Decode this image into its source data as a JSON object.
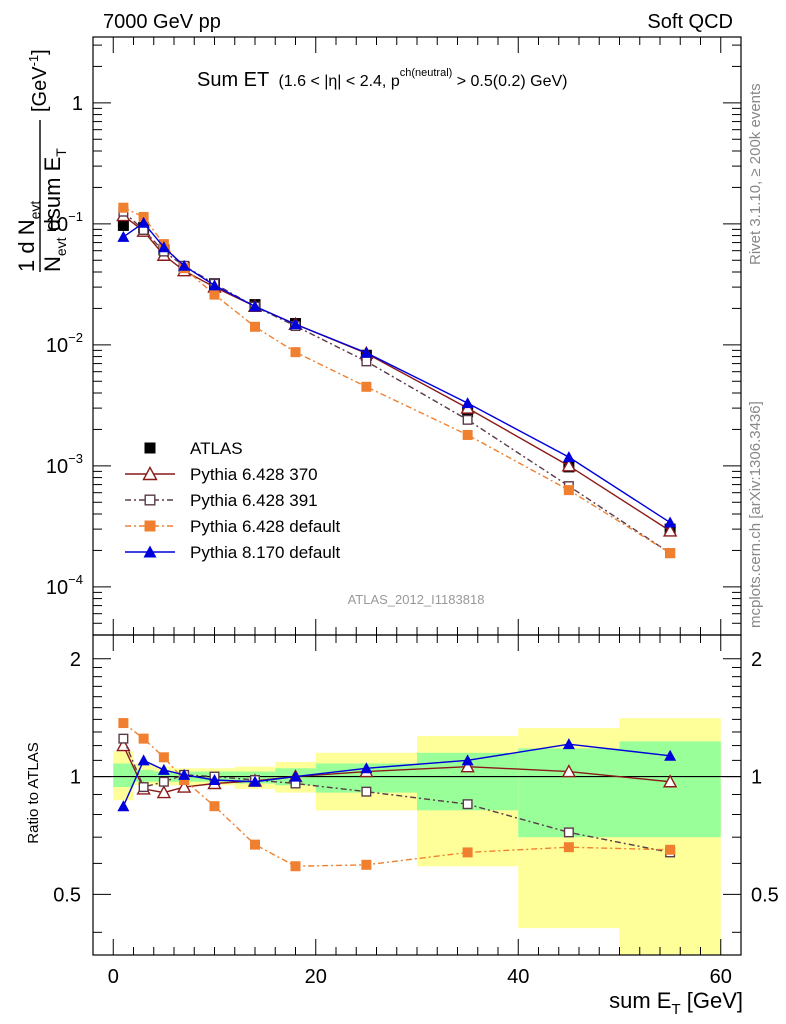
{
  "header": {
    "left": "7000 GeV pp",
    "right": "Soft QCD"
  },
  "side_labels": {
    "rivet": "Rivet 3.1.10, ≥ 200k events",
    "mcplots": "mcplots.cern.ch [arXiv:1306.3436]"
  },
  "chart_data": [
    {
      "type": "line",
      "panel": "main",
      "title": "Sum ET",
      "title_detail": "(1.6 < |η| < 2.4, p",
      "title_detail_sup": "ch(neutral)",
      "title_detail_end": " > 0.5(0.2) GeV)",
      "ylabel_numer": "1     d N",
      "ylabel_numer_sub": "evt",
      "ylabel_denom": "N",
      "ylabel_denom_sub": "evt",
      "ylabel_denom_2": " dsum E",
      "ylabel_denom_2_sub": "T",
      "ylabel_unit": "[GeV",
      "ylabel_unit_sup": "-1",
      "ylabel_unit_end": "]",
      "yscale": "log",
      "xlim": [
        -2,
        62
      ],
      "ylim": [
        4e-05,
        3.5
      ],
      "ytick_labels": [
        {
          "value": 1,
          "mant": "1",
          "exp": ""
        },
        {
          "value": 0.1,
          "mant": "10",
          "exp": "−1"
        },
        {
          "value": 0.01,
          "mant": "10",
          "exp": "−2"
        },
        {
          "value": 0.001,
          "mant": "10",
          "exp": "−3"
        },
        {
          "value": 0.0001,
          "mant": "10",
          "exp": "−4"
        }
      ],
      "watermark": "ATLAS_2012_I1183818",
      "legend_position": "bottom-left",
      "x": [
        1,
        3,
        5,
        7,
        10,
        14,
        18,
        25,
        35,
        45,
        55
      ],
      "series": [
        {
          "name": "ATLAS",
          "color": "#000000",
          "marker": "square-filled",
          "values": [
            0.097,
            0.093,
            0.061,
            0.044,
            0.032,
            0.0215,
            0.015,
            0.0082,
            0.0028,
            0.00098,
            0.0003
          ]
        },
        {
          "name": "Pythia 6.428 370",
          "color": "#8b1a1a",
          "marker": "triangle-open",
          "dash": "",
          "values": [
            0.117,
            0.087,
            0.055,
            0.041,
            0.03,
            0.0208,
            0.0148,
            0.0085,
            0.003,
            0.001,
            0.00029
          ]
        },
        {
          "name": "Pythia 6.428 391",
          "color": "#5a3a4a",
          "marker": "square-open",
          "dash": "6,3,2,3",
          "values": [
            0.126,
            0.089,
            0.059,
            0.045,
            0.032,
            0.0207,
            0.0143,
            0.0073,
            0.0024,
            0.00068,
            0.00019
          ]
        },
        {
          "name": "Pythia 6.428 default",
          "color": "#f08030",
          "marker": "square-filled",
          "dash": "6,3,2,3",
          "values": [
            0.136,
            0.114,
            0.068,
            0.043,
            0.026,
            0.0141,
            0.0087,
            0.0045,
            0.0018,
            0.00063,
            0.00019
          ]
        },
        {
          "name": "Pythia 8.170 default",
          "color": "#0000dd",
          "marker": "triangle-filled",
          "dash": "",
          "values": [
            0.078,
            0.102,
            0.064,
            0.045,
            0.031,
            0.0208,
            0.0148,
            0.0086,
            0.0033,
            0.00118,
            0.00034
          ]
        }
      ]
    },
    {
      "type": "line",
      "panel": "ratio",
      "ylabel": "Ratio to ATLAS",
      "xlabel": "sum E",
      "xlabel_sub": "T",
      "xlabel_end": " [GeV]",
      "xlim": [
        -2,
        62
      ],
      "ylim": [
        0.35,
        2.3
      ],
      "xticks": [
        0,
        20,
        40,
        60
      ],
      "yticks": [
        0.5,
        1,
        2
      ],
      "band_edges": [
        0,
        2,
        4,
        6,
        8,
        12,
        16,
        20,
        30,
        40,
        50,
        60
      ],
      "band_yellow": [
        [
          0.87,
          1.16
        ],
        [
          0.95,
          1.08
        ],
        [
          0.95,
          1.06
        ],
        [
          0.95,
          1.05
        ],
        [
          0.95,
          1.05
        ],
        [
          0.93,
          1.06
        ],
        [
          0.91,
          1.09
        ],
        [
          0.82,
          1.15
        ],
        [
          0.59,
          1.27
        ],
        [
          0.41,
          1.33
        ],
        [
          0.35,
          1.41
        ]
      ],
      "band_green": [
        [
          0.94,
          1.08
        ],
        [
          0.97,
          1.04
        ],
        [
          0.97,
          1.03
        ],
        [
          0.97,
          1.03
        ],
        [
          0.97,
          1.03
        ],
        [
          0.96,
          1.03
        ],
        [
          0.95,
          1.05
        ],
        [
          0.91,
          1.08
        ],
        [
          0.82,
          1.15
        ],
        [
          0.7,
          1.18
        ],
        [
          0.7,
          1.23
        ]
      ],
      "x": [
        1,
        3,
        5,
        7,
        10,
        14,
        18,
        25,
        35,
        45,
        55
      ],
      "series": [
        {
          "name": "Pythia 6.428 370",
          "color": "#8b1a1a",
          "marker": "triangle-open",
          "dash": "",
          "values": [
            1.2,
            0.93,
            0.91,
            0.94,
            0.96,
            0.975,
            1.0,
            1.03,
            1.06,
            1.03,
            0.97
          ]
        },
        {
          "name": "Pythia 6.428 391",
          "color": "#5a3a4a",
          "marker": "square-open",
          "dash": "6,3,2,3",
          "values": [
            1.25,
            0.94,
            0.97,
            1.01,
            1.0,
            0.98,
            0.96,
            0.915,
            0.85,
            0.72,
            0.64
          ]
        },
        {
          "name": "Pythia 6.428 default",
          "color": "#f08030",
          "marker": "square-filled",
          "dash": "6,3,2,3",
          "values": [
            1.37,
            1.25,
            1.12,
            0.98,
            0.84,
            0.67,
            0.59,
            0.595,
            0.64,
            0.66,
            0.65
          ]
        },
        {
          "name": "Pythia 8.170 default",
          "color": "#0000dd",
          "marker": "triangle-filled",
          "dash": "",
          "values": [
            0.84,
            1.1,
            1.04,
            1.01,
            0.98,
            0.97,
            1.0,
            1.05,
            1.1,
            1.21,
            1.13
          ]
        }
      ]
    }
  ]
}
